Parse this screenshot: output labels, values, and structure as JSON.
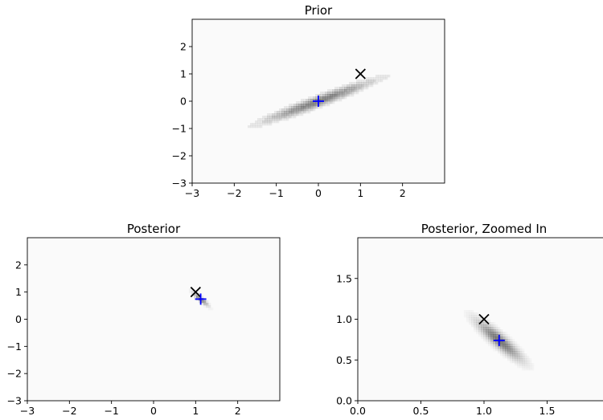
{
  "chart_data": [
    {
      "type": "heatmap",
      "title": "Prior",
      "xlabel": "",
      "ylabel": "",
      "xlim": [
        -3,
        3
      ],
      "ylim": [
        -3,
        3
      ],
      "xticks": [
        "−3",
        "−2",
        "−1",
        "0",
        "1",
        "2"
      ],
      "yticks": [
        "2",
        "1",
        "0",
        "−1",
        "−2",
        "−3"
      ],
      "grid": false,
      "density": {
        "center": [
          0,
          0
        ],
        "sigma_x": 0.85,
        "sigma_y": 0.5,
        "correlation": 0.96,
        "style": "filled contours"
      },
      "markers": [
        {
          "name": "x-marker",
          "symbol": "x",
          "color": "#000000",
          "x": 1.0,
          "y": 1.0
        },
        {
          "name": "plus-marker",
          "symbol": "+",
          "color": "#0000ff",
          "x": 0.0,
          "y": 0.0
        }
      ]
    },
    {
      "type": "heatmap",
      "title": "Posterior",
      "xlabel": "",
      "ylabel": "",
      "xlim": [
        -3,
        3
      ],
      "ylim": [
        -3,
        3
      ],
      "xticks": [
        "−3",
        "−2",
        "−1",
        "0",
        "1",
        "2"
      ],
      "yticks": [
        "2",
        "1",
        "0",
        "−1",
        "−2",
        "−3"
      ],
      "grid": false,
      "density": {
        "center": [
          1.12,
          0.74
        ],
        "sigma_x": 0.11,
        "sigma_y": 0.15,
        "correlation": -0.9,
        "style": "smooth"
      },
      "markers": [
        {
          "name": "x-marker",
          "symbol": "x",
          "color": "#000000",
          "x": 1.0,
          "y": 1.0
        },
        {
          "name": "plus-marker",
          "symbol": "+",
          "color": "#0000ff",
          "x": 1.12,
          "y": 0.74
        }
      ]
    },
    {
      "type": "heatmap",
      "title": "Posterior, Zoomed In",
      "xlabel": "",
      "ylabel": "",
      "xlim": [
        0,
        2
      ],
      "ylim": [
        0,
        2
      ],
      "xticks": [
        "0.0",
        "0.5",
        "1.0",
        "1.5"
      ],
      "yticks": [
        "1.5",
        "1.0",
        "0.5",
        "0.0"
      ],
      "grid": false,
      "density": {
        "center": [
          1.12,
          0.74
        ],
        "sigma_x": 0.11,
        "sigma_y": 0.15,
        "correlation": -0.9,
        "style": "smooth"
      },
      "markers": [
        {
          "name": "x-marker",
          "symbol": "x",
          "color": "#000000",
          "x": 1.0,
          "y": 1.0
        },
        {
          "name": "plus-marker",
          "symbol": "+",
          "color": "#0000ff",
          "x": 1.12,
          "y": 0.74
        }
      ]
    }
  ],
  "colors": {
    "background": "#fafafa",
    "density": "#4d4d4d",
    "x_marker": "#000000",
    "plus_marker": "#0000ff"
  }
}
